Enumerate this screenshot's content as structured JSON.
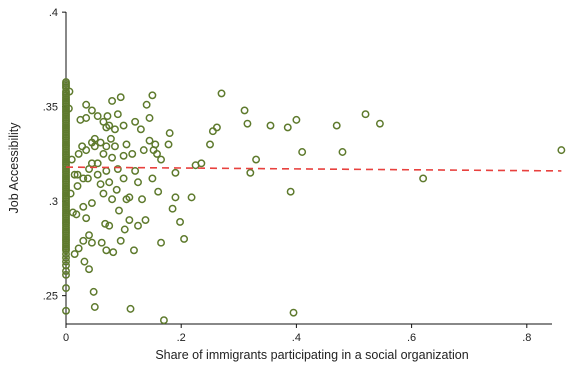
{
  "chart_data": {
    "type": "scatter",
    "xlabel": "Share of immigrants participating in a social organization",
    "ylabel": "Job Accessibility",
    "xlim": [
      0,
      0.86
    ],
    "ylim": [
      0.235,
      0.4
    ],
    "xticks": [
      0,
      0.2,
      0.4,
      0.6,
      0.8
    ],
    "xtick_labels": [
      "0",
      ".2",
      ".4",
      ".6",
      ".8"
    ],
    "yticks": [
      0.25,
      0.3,
      0.35,
      0.4
    ],
    "ytick_labels": [
      ".25",
      ".3",
      ".35",
      ".4"
    ],
    "grid": false,
    "legend": "none",
    "colors": {
      "points": "#5e7a2d",
      "fit_line": "#e8413e"
    },
    "fit_line": {
      "style": "dashed",
      "x": [
        0,
        0.86
      ],
      "y": [
        0.318,
        0.316
      ]
    },
    "zero_points_y": [
      0.363,
      0.362,
      0.361,
      0.36,
      0.358,
      0.357,
      0.356,
      0.355,
      0.354,
      0.353,
      0.352,
      0.351,
      0.35,
      0.349,
      0.348,
      0.347,
      0.346,
      0.345,
      0.344,
      0.343,
      0.342,
      0.341,
      0.34,
      0.339,
      0.338,
      0.337,
      0.336,
      0.335,
      0.334,
      0.333,
      0.332,
      0.331,
      0.33,
      0.329,
      0.328,
      0.327,
      0.326,
      0.325,
      0.324,
      0.323,
      0.322,
      0.321,
      0.32,
      0.319,
      0.318,
      0.317,
      0.316,
      0.315,
      0.314,
      0.313,
      0.312,
      0.311,
      0.31,
      0.309,
      0.308,
      0.307,
      0.306,
      0.305,
      0.304,
      0.303,
      0.302,
      0.301,
      0.3,
      0.299,
      0.298,
      0.297,
      0.296,
      0.295,
      0.294,
      0.293,
      0.292,
      0.291,
      0.29,
      0.289,
      0.288,
      0.287,
      0.286,
      0.285,
      0.284,
      0.283,
      0.282,
      0.281,
      0.28,
      0.279,
      0.278,
      0.277,
      0.276,
      0.275,
      0.274,
      0.272,
      0.27,
      0.268,
      0.266,
      0.263,
      0.261,
      0.254,
      0.242
    ],
    "points": [
      [
        0.005,
        0.349
      ],
      [
        0.006,
        0.358
      ],
      [
        0.008,
        0.304
      ],
      [
        0.01,
        0.322
      ],
      [
        0.012,
        0.294
      ],
      [
        0.015,
        0.314
      ],
      [
        0.015,
        0.272
      ],
      [
        0.018,
        0.293
      ],
      [
        0.02,
        0.314
      ],
      [
        0.02,
        0.308
      ],
      [
        0.022,
        0.325
      ],
      [
        0.022,
        0.275
      ],
      [
        0.025,
        0.343
      ],
      [
        0.028,
        0.329
      ],
      [
        0.03,
        0.312
      ],
      [
        0.03,
        0.297
      ],
      [
        0.03,
        0.279
      ],
      [
        0.032,
        0.268
      ],
      [
        0.035,
        0.351
      ],
      [
        0.035,
        0.344
      ],
      [
        0.035,
        0.327
      ],
      [
        0.035,
        0.291
      ],
      [
        0.038,
        0.312
      ],
      [
        0.04,
        0.317
      ],
      [
        0.04,
        0.282
      ],
      [
        0.04,
        0.264
      ],
      [
        0.045,
        0.348
      ],
      [
        0.045,
        0.331
      ],
      [
        0.045,
        0.32
      ],
      [
        0.045,
        0.299
      ],
      [
        0.045,
        0.278
      ],
      [
        0.048,
        0.252
      ],
      [
        0.05,
        0.333
      ],
      [
        0.05,
        0.329
      ],
      [
        0.05,
        0.244
      ],
      [
        0.055,
        0.345
      ],
      [
        0.055,
        0.32
      ],
      [
        0.055,
        0.314
      ],
      [
        0.06,
        0.331
      ],
      [
        0.06,
        0.309
      ],
      [
        0.062,
        0.278
      ],
      [
        0.065,
        0.342
      ],
      [
        0.065,
        0.325
      ],
      [
        0.065,
        0.304
      ],
      [
        0.068,
        0.288
      ],
      [
        0.07,
        0.339
      ],
      [
        0.07,
        0.329
      ],
      [
        0.07,
        0.316
      ],
      [
        0.07,
        0.274
      ],
      [
        0.072,
        0.345
      ],
      [
        0.075,
        0.34
      ],
      [
        0.075,
        0.31
      ],
      [
        0.075,
        0.287
      ],
      [
        0.078,
        0.333
      ],
      [
        0.08,
        0.353
      ],
      [
        0.08,
        0.323
      ],
      [
        0.08,
        0.301
      ],
      [
        0.082,
        0.273
      ],
      [
        0.085,
        0.338
      ],
      [
        0.085,
        0.329
      ],
      [
        0.088,
        0.306
      ],
      [
        0.09,
        0.346
      ],
      [
        0.09,
        0.317
      ],
      [
        0.092,
        0.295
      ],
      [
        0.095,
        0.279
      ],
      [
        0.095,
        0.355
      ],
      [
        0.1,
        0.34
      ],
      [
        0.1,
        0.324
      ],
      [
        0.1,
        0.312
      ],
      [
        0.102,
        0.285
      ],
      [
        0.105,
        0.33
      ],
      [
        0.105,
        0.301
      ],
      [
        0.11,
        0.302
      ],
      [
        0.11,
        0.29
      ],
      [
        0.112,
        0.243
      ],
      [
        0.115,
        0.325
      ],
      [
        0.118,
        0.274
      ],
      [
        0.12,
        0.342
      ],
      [
        0.12,
        0.316
      ],
      [
        0.125,
        0.31
      ],
      [
        0.125,
        0.287
      ],
      [
        0.13,
        0.338
      ],
      [
        0.132,
        0.301
      ],
      [
        0.135,
        0.327
      ],
      [
        0.138,
        0.29
      ],
      [
        0.14,
        0.351
      ],
      [
        0.145,
        0.344
      ],
      [
        0.145,
        0.332
      ],
      [
        0.15,
        0.356
      ],
      [
        0.15,
        0.312
      ],
      [
        0.152,
        0.327
      ],
      [
        0.155,
        0.33
      ],
      [
        0.158,
        0.325
      ],
      [
        0.16,
        0.305
      ],
      [
        0.165,
        0.322
      ],
      [
        0.165,
        0.278
      ],
      [
        0.17,
        0.237
      ],
      [
        0.178,
        0.33
      ],
      [
        0.18,
        0.336
      ],
      [
        0.185,
        0.296
      ],
      [
        0.19,
        0.315
      ],
      [
        0.19,
        0.302
      ],
      [
        0.198,
        0.289
      ],
      [
        0.205,
        0.28
      ],
      [
        0.218,
        0.302
      ],
      [
        0.225,
        0.319
      ],
      [
        0.235,
        0.32
      ],
      [
        0.25,
        0.33
      ],
      [
        0.255,
        0.337
      ],
      [
        0.262,
        0.339
      ],
      [
        0.27,
        0.357
      ],
      [
        0.31,
        0.348
      ],
      [
        0.315,
        0.341
      ],
      [
        0.32,
        0.315
      ],
      [
        0.33,
        0.322
      ],
      [
        0.355,
        0.34
      ],
      [
        0.385,
        0.339
      ],
      [
        0.39,
        0.305
      ],
      [
        0.395,
        0.241
      ],
      [
        0.4,
        0.343
      ],
      [
        0.41,
        0.326
      ],
      [
        0.47,
        0.34
      ],
      [
        0.48,
        0.326
      ],
      [
        0.52,
        0.346
      ],
      [
        0.545,
        0.341
      ],
      [
        0.62,
        0.312
      ],
      [
        0.86,
        0.327
      ]
    ]
  }
}
